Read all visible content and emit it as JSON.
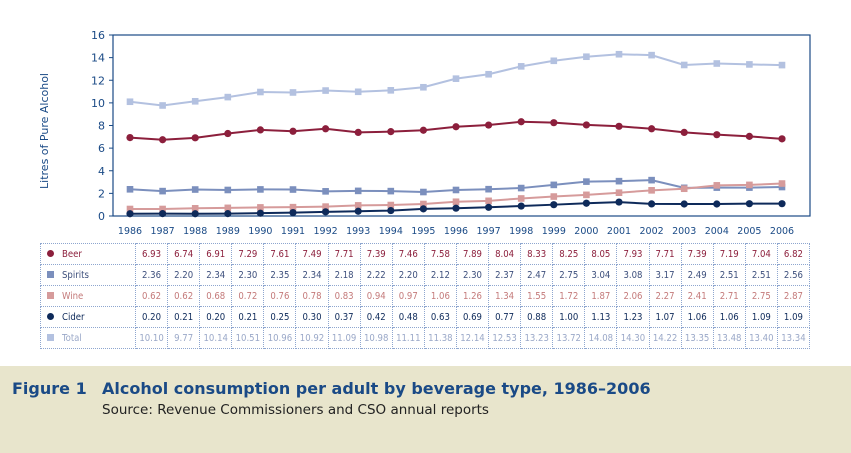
{
  "chart_data": {
    "type": "line",
    "ylabel": "Litres of Pure Alcohol",
    "ylim": [
      0,
      16
    ],
    "yticks": [
      0,
      2,
      4,
      6,
      8,
      10,
      12,
      14,
      16
    ],
    "grid": false,
    "categories": [
      "1986",
      "1987",
      "1988",
      "1989",
      "1990",
      "1991",
      "1992",
      "1993",
      "1994",
      "1995",
      "1996",
      "1997",
      "1998",
      "1999",
      "2000",
      "2001",
      "2002",
      "2003",
      "2004",
      "2005",
      "2006"
    ],
    "series": [
      {
        "name": "Beer",
        "marker": "circle",
        "color": "#8c1f3c",
        "values": [
          6.93,
          6.74,
          6.91,
          7.29,
          7.61,
          7.49,
          7.71,
          7.39,
          7.46,
          7.58,
          7.89,
          8.04,
          8.33,
          8.25,
          8.05,
          7.93,
          7.71,
          7.39,
          7.19,
          7.04,
          6.82
        ],
        "display": [
          "6.93",
          "6.74",
          "6.91",
          "7.29",
          "7.61",
          "7.49",
          "7.71",
          "7.39",
          "7.46",
          "7.58",
          "7.89",
          "8.04",
          "8.33",
          "8.25",
          "8.05",
          "7.93",
          "7.71",
          "7.39",
          "7.19",
          "7.04",
          "6.82"
        ]
      },
      {
        "name": "Spirits",
        "marker": "square",
        "color": "#7b8fbd",
        "values": [
          2.36,
          2.2,
          2.34,
          2.3,
          2.35,
          2.34,
          2.18,
          2.22,
          2.2,
          2.12,
          2.3,
          2.37,
          2.47,
          2.75,
          3.04,
          3.08,
          3.17,
          2.49,
          2.51,
          2.51,
          2.56
        ],
        "display": [
          "2.36",
          "2.20",
          "2.34",
          "2.30",
          "2.35",
          "2.34",
          "2.18",
          "2.22",
          "2.20",
          "2.12",
          "2.30",
          "2.37",
          "2.47",
          "2.75",
          "3.04",
          "3.08",
          "3.17",
          "2.49",
          "2.51",
          "2.51",
          "2.56"
        ]
      },
      {
        "name": "Wine",
        "marker": "square",
        "color": "#d69b9b",
        "values": [
          0.62,
          0.62,
          0.68,
          0.72,
          0.76,
          0.78,
          0.83,
          0.94,
          0.97,
          1.06,
          1.26,
          1.34,
          1.55,
          1.72,
          1.87,
          2.06,
          2.27,
          2.41,
          2.71,
          2.75,
          2.87
        ],
        "display": [
          "0.62",
          "0.62",
          "0.68",
          "0.72",
          "0.76",
          "0.78",
          "0.83",
          "0.94",
          "0.97",
          "1.06",
          "1.26",
          "1.34",
          "1.55",
          "1.72",
          "1.87",
          "2.06",
          "2.27",
          "2.41",
          "2.71",
          "2.75",
          "2.87"
        ]
      },
      {
        "name": "Cider",
        "marker": "circle",
        "color": "#0e2a5a",
        "values": [
          0.2,
          0.21,
          0.2,
          0.21,
          0.25,
          0.3,
          0.37,
          0.42,
          0.48,
          0.63,
          0.69,
          0.77,
          0.88,
          1.0,
          1.13,
          1.23,
          1.07,
          1.06,
          1.06,
          1.09,
          1.09
        ],
        "display": [
          "0.20",
          "0.21",
          "0.20",
          "0.21",
          "0.25",
          "0.30",
          "0.37",
          "0.42",
          "0.48",
          "0.63",
          "0.69",
          "0.77",
          "0.88",
          "1.00",
          "1.13",
          "1.23",
          "1.07",
          "1.06",
          "1.06",
          "1.09",
          "1.09"
        ]
      },
      {
        "name": "Total",
        "marker": "square",
        "color": "#b3c1e0",
        "values": [
          10.1,
          9.77,
          10.14,
          10.51,
          10.96,
          10.92,
          11.09,
          10.98,
          11.11,
          11.38,
          12.14,
          12.53,
          13.23,
          13.72,
          14.08,
          14.3,
          14.22,
          13.35,
          13.48,
          13.4,
          13.34
        ],
        "display": [
          "10.10",
          "9.77",
          "10.14",
          "10.51",
          "10.96",
          "10.92",
          "11.09",
          "10.98",
          "11.11",
          "11.38",
          "12.14",
          "12.53",
          "13.23",
          "13.72",
          "14.08",
          "14.30",
          "14.22",
          "13.35",
          "13.48",
          "13.40",
          "13.34"
        ]
      }
    ]
  },
  "caption": {
    "label": "Figure 1",
    "title": "Alcohol consumption per adult by beverage type, 1986–2006",
    "source": "Source: Revenue Commissioners and CSO annual reports"
  }
}
